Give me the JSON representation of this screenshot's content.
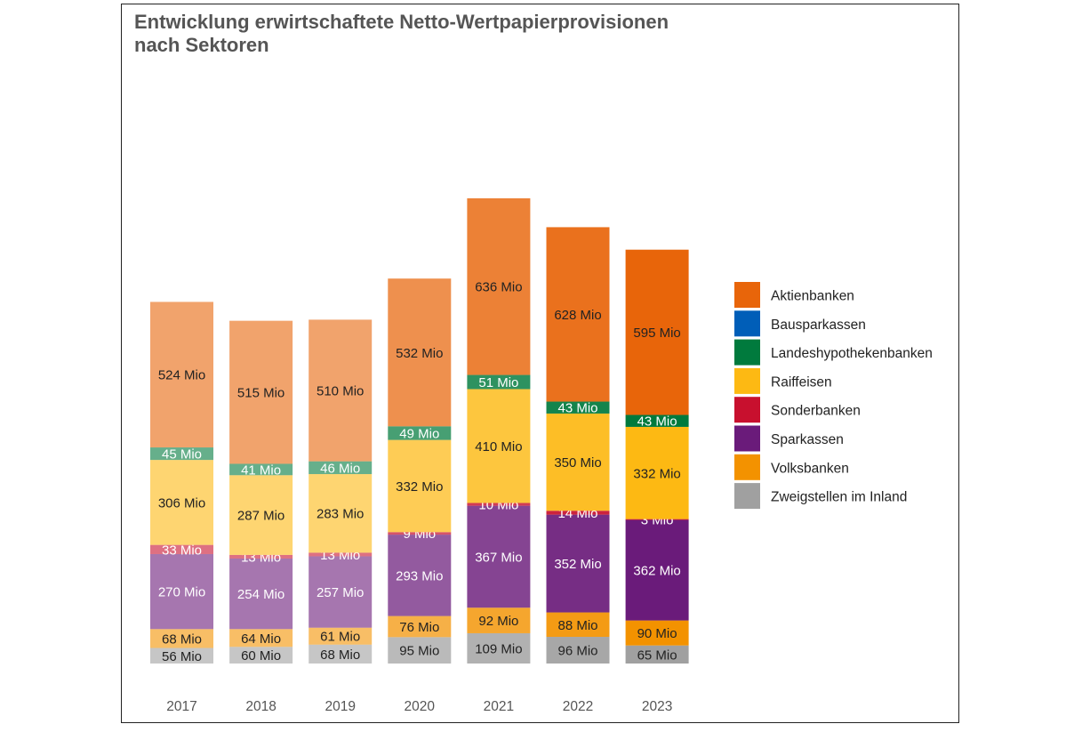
{
  "chart_data": {
    "type": "bar",
    "stacked": true,
    "title": "Entwicklung erwirtschaftete Netto-Wertpapierprovisionen",
    "subtitle": "nach Sektoren",
    "xlabel": "",
    "ylabel": "",
    "unit_suffix": " Mio",
    "categories": [
      "2017",
      "2018",
      "2019",
      "2020",
      "2021",
      "2022",
      "2023"
    ],
    "legend_position": "right",
    "grid": false,
    "series": [
      {
        "name": "Zweigstellen im Inland",
        "color": "#A0A0A0",
        "values": [
          56,
          60,
          68,
          95,
          109,
          96,
          65
        ]
      },
      {
        "name": "Volksbanken",
        "color": "#F39200",
        "values": [
          68,
          64,
          61,
          76,
          92,
          88,
          90
        ]
      },
      {
        "name": "Sparkassen",
        "color": "#6A1B7A",
        "values": [
          270,
          254,
          257,
          293,
          367,
          352,
          362
        ]
      },
      {
        "name": "Sonderbanken",
        "color": "#C8102E",
        "values": [
          33,
          13,
          13,
          9,
          10,
          14,
          3
        ]
      },
      {
        "name": "Raiffeisen",
        "color": "#FDB913",
        "values": [
          306,
          287,
          283,
          332,
          410,
          350,
          332
        ]
      },
      {
        "name": "Landeshypothekenbanken",
        "color": "#007A3D",
        "values": [
          45,
          41,
          46,
          49,
          51,
          43,
          43
        ]
      },
      {
        "name": "Bausparkassen",
        "color": "#005EB8",
        "values": [
          0,
          0,
          0,
          0,
          0,
          0,
          0
        ]
      },
      {
        "name": "Aktienbanken",
        "color": "#E8650A",
        "values": [
          524,
          515,
          510,
          532,
          636,
          628,
          595
        ]
      }
    ],
    "legend_order": [
      "Aktienbanken",
      "Bausparkassen",
      "Landeshypothekenbanken",
      "Raiffeisen",
      "Sonderbanken",
      "Sparkassen",
      "Volksbanken",
      "Zweigstellen im Inland"
    ],
    "bar_opacity": [
      0.6,
      0.6,
      0.6,
      0.72,
      0.82,
      0.92,
      1.0
    ],
    "light_label_series": [
      "Sparkassen",
      "Sonderbanken",
      "Landeshypothekenbanken"
    ]
  }
}
